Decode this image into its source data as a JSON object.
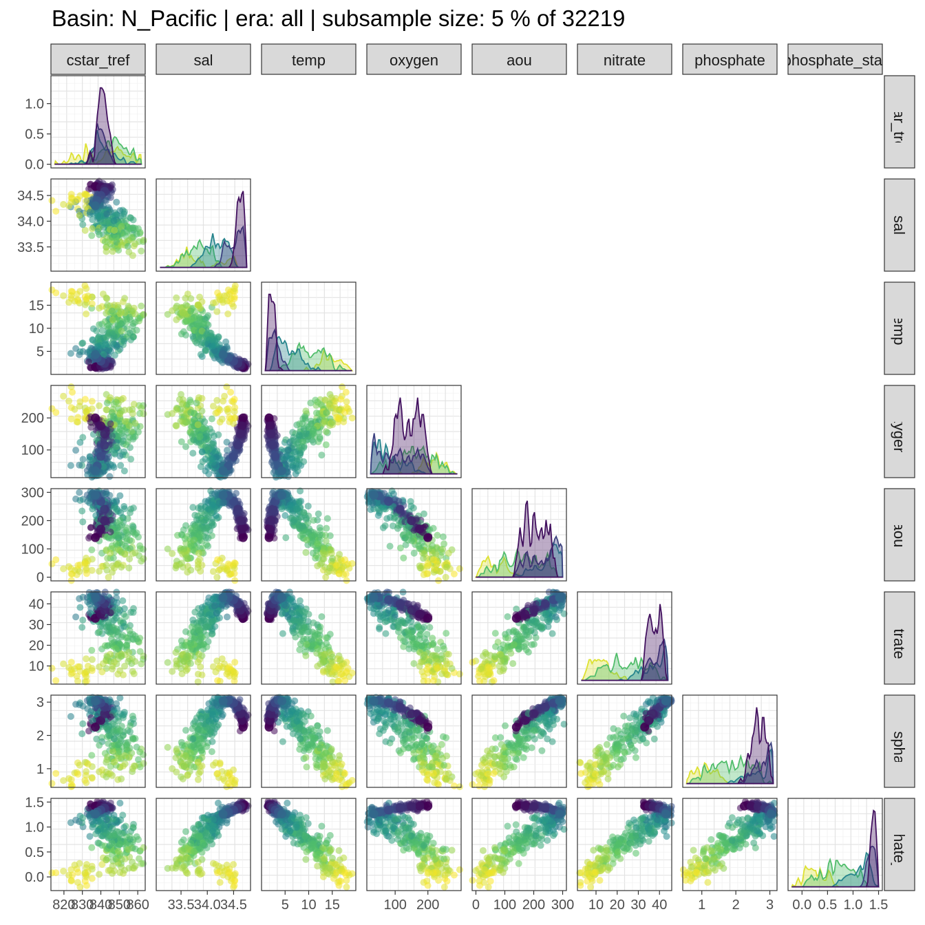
{
  "title": "Basin: N_Pacific | era: all | subsample size: 5 % of 32219",
  "chart_data": {
    "type": "scatter",
    "layout": "pairs-matrix-lower-triangle",
    "variables": [
      "cstar_tref",
      "sal",
      "temp",
      "oxygen",
      "aou",
      "nitrate",
      "phosphate",
      "phosphate_star"
    ],
    "column_strip_labels": [
      "cstar_tref",
      "sal",
      "temp",
      "oxygen",
      "aou",
      "nitrate",
      "phosphate",
      "phosphate_star"
    ],
    "row_strip_labels": [
      "cstar_tref",
      "sal",
      "temp",
      "oxygen",
      "aou",
      "nitrate",
      "phosphate",
      "phosphate_star"
    ],
    "diagonal": "density",
    "grid": true,
    "palette": [
      "#440154",
      "#3b528b",
      "#21908c",
      "#5dc863",
      "#fde725"
    ],
    "x_ticks": {
      "cstar_tref": [
        "820",
        "830",
        "840",
        "850",
        "860"
      ],
      "sal": [
        "33.5",
        "34.0",
        "34.5"
      ],
      "temp": [
        "5",
        "10",
        "15"
      ],
      "oxygen": [
        "100",
        "200"
      ],
      "aou": [
        "0",
        "100",
        "200",
        "300"
      ],
      "nitrate": [
        "10",
        "20",
        "30",
        "40"
      ],
      "phosphate": [
        "1",
        "2",
        "3"
      ],
      "phosphate_star": [
        "0.0",
        "0.5",
        "1.0",
        "1.5"
      ]
    },
    "y_ticks": {
      "cstar_tref_density": [
        "0.0",
        "0.5",
        "1.0"
      ],
      "sal": [
        "33.5",
        "34.0",
        "34.5"
      ],
      "temp": [
        "5",
        "10",
        "15"
      ],
      "oxygen": [
        "100",
        "200"
      ],
      "aou": [
        "0",
        "100",
        "200",
        "300"
      ],
      "nitrate": [
        "10",
        "20",
        "30",
        "40"
      ],
      "phosphate": [
        "1",
        "2",
        "3"
      ],
      "phosphate_star": [
        "0.0",
        "0.5",
        "1.0",
        "1.5"
      ]
    },
    "ranges": {
      "cstar_tref": [
        815,
        862
      ],
      "sal": [
        33.1,
        34.75
      ],
      "temp": [
        0.8,
        19.2
      ],
      "oxygen": [
        25,
        290
      ],
      "aou": [
        0,
        300
      ],
      "nitrate": [
        3,
        44
      ],
      "phosphate": [
        0.55,
        3.1
      ],
      "phosphate_star": [
        -0.2,
        1.5
      ]
    },
    "density_ylim": [
      0,
      1.4
    ],
    "profile_points": [
      {
        "cstar_tref": 837,
        "sal": 34.68,
        "temp": 1.6,
        "oxygen": 200,
        "aou": 140,
        "nitrate": 33,
        "phosphate": 2.25,
        "phosphate_star": 1.42
      },
      {
        "cstar_tref": 840,
        "sal": 34.66,
        "temp": 1.8,
        "oxygen": 175,
        "aou": 170,
        "nitrate": 35,
        "phosphate": 2.45,
        "phosphate_star": 1.42
      },
      {
        "cstar_tref": 842,
        "sal": 34.63,
        "temp": 2.0,
        "oxygen": 150,
        "aou": 200,
        "nitrate": 37,
        "phosphate": 2.65,
        "phosphate_star": 1.41
      },
      {
        "cstar_tref": 842,
        "sal": 34.58,
        "temp": 2.4,
        "oxygen": 115,
        "aou": 240,
        "nitrate": 40,
        "phosphate": 2.85,
        "phosphate_star": 1.38
      },
      {
        "cstar_tref": 840,
        "sal": 34.5,
        "temp": 2.9,
        "oxygen": 80,
        "aou": 268,
        "nitrate": 42,
        "phosphate": 2.98,
        "phosphate_star": 1.34
      },
      {
        "cstar_tref": 838,
        "sal": 34.4,
        "temp": 3.6,
        "oxygen": 50,
        "aou": 288,
        "nitrate": 43,
        "phosphate": 3.05,
        "phosphate_star": 1.3
      },
      {
        "cstar_tref": 837,
        "sal": 34.3,
        "temp": 4.3,
        "oxygen": 35,
        "aou": 290,
        "nitrate": 43,
        "phosphate": 3.03,
        "phosphate_star": 1.26
      },
      {
        "cstar_tref": 839,
        "sal": 34.2,
        "temp": 5.2,
        "oxygen": 45,
        "aou": 280,
        "nitrate": 41,
        "phosphate": 2.9,
        "phosphate_star": 1.2
      },
      {
        "cstar_tref": 842,
        "sal": 34.1,
        "temp": 6.3,
        "oxygen": 70,
        "aou": 255,
        "nitrate": 38,
        "phosphate": 2.7,
        "phosphate_star": 1.1
      },
      {
        "cstar_tref": 845,
        "sal": 34.0,
        "temp": 7.6,
        "oxygen": 100,
        "aou": 225,
        "nitrate": 34,
        "phosphate": 2.45,
        "phosphate_star": 0.98
      },
      {
        "cstar_tref": 848,
        "sal": 33.9,
        "temp": 9.0,
        "oxygen": 135,
        "aou": 185,
        "nitrate": 29,
        "phosphate": 2.15,
        "phosphate_star": 0.84
      },
      {
        "cstar_tref": 850,
        "sal": 33.8,
        "temp": 10.5,
        "oxygen": 165,
        "aou": 150,
        "nitrate": 24,
        "phosphate": 1.85,
        "phosphate_star": 0.7
      },
      {
        "cstar_tref": 852,
        "sal": 33.7,
        "temp": 12.0,
        "oxygen": 190,
        "aou": 115,
        "nitrate": 19,
        "phosphate": 1.55,
        "phosphate_star": 0.55
      },
      {
        "cstar_tref": 854,
        "sal": 33.6,
        "temp": 13.5,
        "oxygen": 210,
        "aou": 85,
        "nitrate": 14,
        "phosphate": 1.25,
        "phosphate_star": 0.4
      },
      {
        "cstar_tref": 850,
        "sal": 33.5,
        "temp": 15.0,
        "oxygen": 225,
        "aou": 60,
        "nitrate": 10,
        "phosphate": 1.0,
        "phosphate_star": 0.25
      },
      {
        "cstar_tref": 830,
        "sal": 34.3,
        "temp": 16.5,
        "oxygen": 230,
        "aou": 40,
        "nitrate": 7,
        "phosphate": 0.8,
        "phosphate_star": 0.1
      },
      {
        "cstar_tref": 822,
        "sal": 34.5,
        "temp": 18.0,
        "oxygen": 210,
        "aou": 25,
        "nitrate": 5,
        "phosphate": 0.65,
        "phosphate_star": -0.05
      }
    ]
  }
}
